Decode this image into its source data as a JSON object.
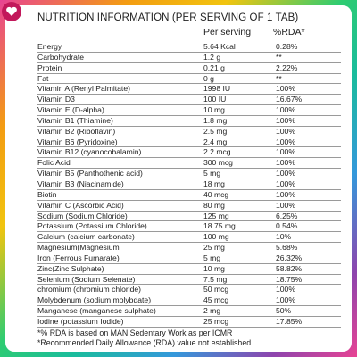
{
  "title": "NUTRITION INFORMATION (PER SERVING OF 1 TAB)",
  "columns": {
    "serving": "Per serving",
    "rda": "%RDA*"
  },
  "rows": [
    {
      "name": "Energy",
      "serving": "5.64 Kcal",
      "rda": "0.28%"
    },
    {
      "name": "Carbohydrate",
      "serving": "1.2 g",
      "rda": "**"
    },
    {
      "name": "Protein",
      "serving": "0.21 g",
      "rda": "2.22%"
    },
    {
      "name": "Fat",
      "serving": "0 g",
      "rda": "**"
    },
    {
      "name": "Vitamin A (Renyl Palmitate)",
      "serving": "1998 IU",
      "rda": "100%"
    },
    {
      "name": "Vitamin D3",
      "serving": "100 IU",
      "rda": "16.67%"
    },
    {
      "name": "Vitamin E (D-alpha)",
      "serving": "10 mg",
      "rda": "100%"
    },
    {
      "name": "Vitamin B1 (Thiamine)",
      "serving": "1.8 mg",
      "rda": "100%"
    },
    {
      "name": "Vitamin B2 (Riboflavin)",
      "serving": "2.5 mg",
      "rda": "100%"
    },
    {
      "name": "Vitamin B6 (Pyridoxine)",
      "serving": "2.4 mg",
      "rda": "100%"
    },
    {
      "name": "Vitamin B12 (cyanocobalamin)",
      "serving": "2.2 mcg",
      "rda": "100%"
    },
    {
      "name": "Folic Acid",
      "serving": "300 mcg",
      "rda": "100%"
    },
    {
      "name": "Vitamin B5 (Panthothenic acid)",
      "serving": "5 mg",
      "rda": "100%"
    },
    {
      "name": "Vitamin B3 (Niacinamide)",
      "serving": "18 mg",
      "rda": "100%"
    },
    {
      "name": "Biotin",
      "serving": "40 mcg",
      "rda": "100%"
    },
    {
      "name": "Vitamin C (Ascorbic Acid)",
      "serving": "80 mg",
      "rda": "100%"
    },
    {
      "name": "Sodium (Sodium Chloride)",
      "serving": "125 mg",
      "rda": "6.25%"
    },
    {
      "name": "Potassium (Potassium Chloride)",
      "serving": "18.75 mg",
      "rda": "0.54%"
    },
    {
      "name": "Calcium (calcium carbonate)",
      "serving": "100 mg",
      "rda": "10%"
    },
    {
      "name": "Magnesium(Magnesium",
      "serving": "25 mg",
      "rda": "5.68%"
    },
    {
      "name": "Iron (Ferrous Fumarate)",
      "serving": "5 mg",
      "rda": "26.32%"
    },
    {
      "name": "Zinc(Zinc Sulphate)",
      "serving": "10 mg",
      "rda": "58.82%"
    },
    {
      "name": "Selenium (Sodium Selenate)",
      "serving": "7.5 mg",
      "rda": "18.75%"
    },
    {
      "name": "chromium (chromium chloride)",
      "serving": "50 mcg",
      "rda": "100%"
    },
    {
      "name": "Molybdenum (sodium molybdate)",
      "serving": "45 mcg",
      "rda": "100%"
    },
    {
      "name": "Manganese (manganese sulphate)",
      "serving": "2 mg",
      "rda": "50%"
    },
    {
      "name": "Iodine (potassium Iodide)",
      "serving": "25 mcg",
      "rda": "17.85%"
    }
  ],
  "footnotes": [
    "*% RDA is based on MAN Sedentary Work as per ICMR",
    "*Recommended Daily Allowance (RDA) value not established"
  ],
  "colors": {
    "logo": "#c2185b"
  }
}
